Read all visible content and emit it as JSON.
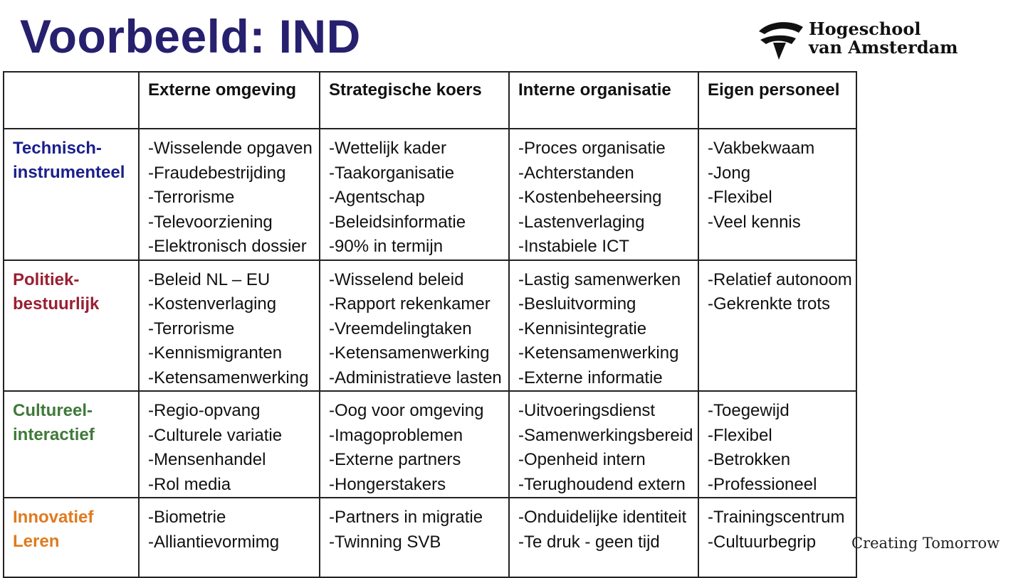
{
  "title": "Voorbeeld: IND",
  "logo": {
    "line1": "Hogeschool",
    "line2": "van Amsterdam",
    "icon": "hva-logo-icon"
  },
  "tagline": "Creating Tomorrow",
  "colors": {
    "title": "#26206e",
    "technisch": "#1a1f8c",
    "politiek": "#9a1f32",
    "cultureel": "#3f7a3a",
    "innovatief": "#e07a1f"
  },
  "table": {
    "columns": [
      "",
      "Externe omgeving",
      "Strategische koers",
      "Interne organisatie",
      "Eigen personeel"
    ],
    "rows": [
      {
        "label": [
          "Technisch-",
          "instrumenteel"
        ],
        "color": "#1a1f8c",
        "cells": [
          [
            "-Wisselende opgaven",
            "-Fraudebestrijding",
            "-Terrorisme",
            "-Televoorziening",
            "-Elektronisch dossier"
          ],
          [
            "-Wettelijk kader",
            "-Taakorganisatie",
            "-Agentschap",
            "-Beleidsinformatie",
            "-90% in termijn"
          ],
          [
            "-Proces organisatie",
            "-Achterstanden",
            "-Kostenbeheersing",
            "-Lastenverlaging",
            "-Instabiele ICT"
          ],
          [
            "-Vakbekwaam",
            "-Jong",
            "-Flexibel",
            "-Veel kennis"
          ]
        ]
      },
      {
        "label": [
          "Politiek-",
          "bestuurlijk"
        ],
        "color": "#9a1f32",
        "cells": [
          [
            "-Beleid NL – EU",
            "-Kostenverlaging",
            "-Terrorisme",
            "-Kennismigranten",
            "-Ketensamenwerking"
          ],
          [
            "-Wisselend beleid",
            "-Rapport rekenkamer",
            "-Vreemdelingtaken",
            "-Ketensamenwerking",
            "-Administratieve lasten"
          ],
          [
            "-Lastig samenwerken",
            "-Besluitvorming",
            "-Kennisintegratie",
            "-Ketensamenwerking",
            "-Externe informatie"
          ],
          [
            "-Relatief autonoom",
            "-Gekrenkte trots"
          ]
        ]
      },
      {
        "label": [
          "Cultureel-",
          "interactief"
        ],
        "color": "#3f7a3a",
        "cells": [
          [
            "-Regio-opvang",
            "-Culturele variatie",
            "-Mensenhandel",
            "-Rol media"
          ],
          [
            "-Oog voor omgeving",
            "-Imagoproblemen",
            "-Externe partners",
            "-Hongerstakers"
          ],
          [
            "-Uitvoeringsdienst",
            "-Samenwerkingsbereid",
            "-Openheid intern",
            "-Terughoudend extern"
          ],
          [
            "-Toegewijd",
            "-Flexibel",
            "-Betrokken",
            "-Professioneel"
          ]
        ]
      },
      {
        "label": [
          "Innovatief",
          "Leren"
        ],
        "color": "#e07a1f",
        "cells": [
          [
            "-Biometrie",
            "-Alliantievormimg"
          ],
          [
            "-Partners in migratie",
            "-Twinning SVB"
          ],
          [
            "-Onduidelijke identiteit",
            "-Te druk - geen tijd"
          ],
          [
            "-Trainingscentrum",
            "-Cultuurbegrip"
          ]
        ]
      }
    ]
  }
}
